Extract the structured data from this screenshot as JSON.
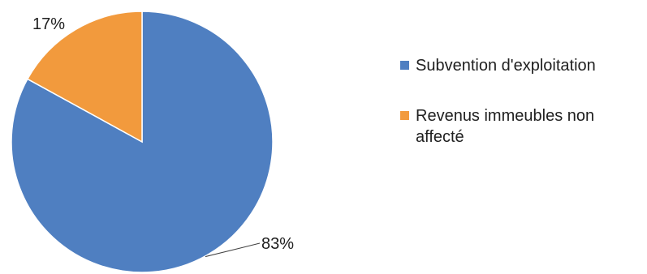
{
  "chart_data": {
    "type": "pie",
    "slices": [
      {
        "label": "Subvention d'exploitation",
        "value": 83,
        "display": "83%",
        "color": "#4f7fc1"
      },
      {
        "label": "Revenus immeubles non affecté",
        "value": 17,
        "display": "17%",
        "color": "#f29a3d"
      }
    ],
    "legend_position": "right"
  }
}
